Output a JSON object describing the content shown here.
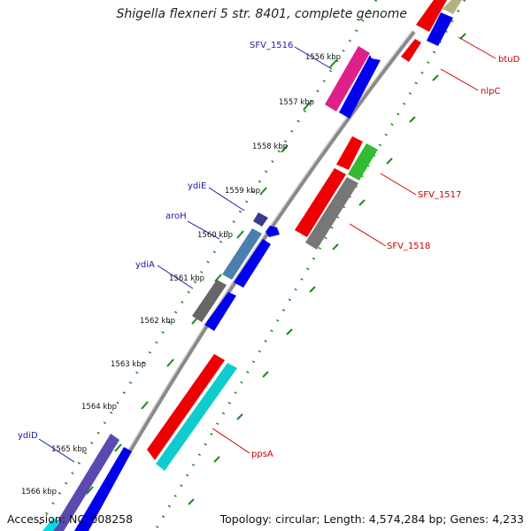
{
  "title": "Shigella flexneri 5 str. 8401, complete genome",
  "footer": {
    "accession": "Accession: NC_008258",
    "topology": "Topology: circular; Length: 4,574,284 bp; Genes: 4,233"
  },
  "ticks": [
    "1556 kbp",
    "1557 kbp",
    "1558 kbp",
    "1559 kbp",
    "1560 kbp",
    "1561 kbp",
    "1562 kbp",
    "1563 kbp",
    "1564 kbp",
    "1565 kbp",
    "1566 kbp"
  ],
  "gene_labels": [
    {
      "name": "SFV_1516",
      "color": "#1a1aa6"
    },
    {
      "name": "ydiE",
      "color": "#1a1aa6"
    },
    {
      "name": "aroH",
      "color": "#1a1aa6"
    },
    {
      "name": "ydiA",
      "color": "#1a1aa6"
    },
    {
      "name": "ydiD",
      "color": "#1a1aa6"
    },
    {
      "name": "btuD",
      "color": "#cc0000"
    },
    {
      "name": "nlpC",
      "color": "#cc0000"
    },
    {
      "name": "SFV_1517",
      "color": "#cc0000"
    },
    {
      "name": "SFV_1518",
      "color": "#cc0000"
    },
    {
      "name": "ppsA",
      "color": "#cc0000"
    }
  ],
  "colors": {
    "backbone": "#888888",
    "tick_dots": "#1a8a1a",
    "forward_cog": "#0000ee",
    "reverse_cog": "#ee0000"
  }
}
